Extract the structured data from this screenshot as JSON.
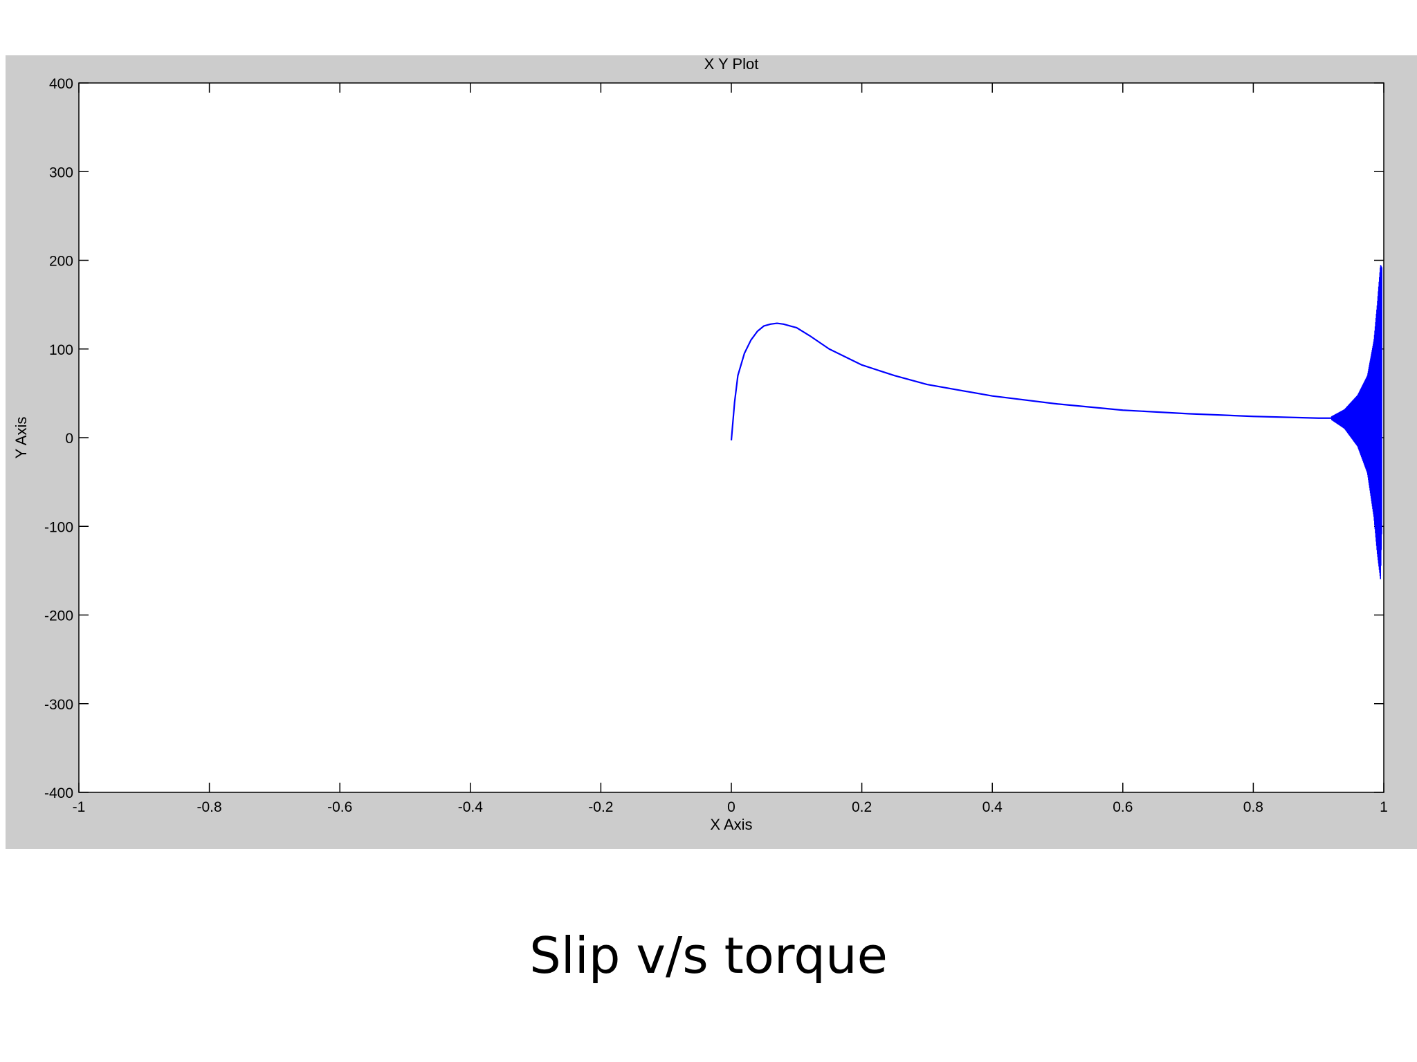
{
  "slide": {
    "caption": "Slip v/s torque"
  },
  "colors": {
    "figure_background": "#cccccc",
    "axes_background": "#ffffff",
    "series_line": "#0000ff",
    "axis_color": "#000000"
  },
  "chart_data": {
    "type": "line",
    "title": "X Y Plot",
    "xlabel": "X Axis",
    "ylabel": "Y Axis",
    "xlim": [
      -1,
      1
    ],
    "ylim": [
      -400,
      400
    ],
    "xticks": [
      -1,
      -0.8,
      -0.6,
      -0.4,
      -0.2,
      0,
      0.2,
      0.4,
      0.6,
      0.8,
      1
    ],
    "yticks": [
      -400,
      -300,
      -200,
      -100,
      0,
      100,
      200,
      300,
      400
    ],
    "xtick_labels": [
      "-1",
      "-0.8",
      "-0.6",
      "-0.4",
      "-0.2",
      "0",
      "0.2",
      "0.4",
      "0.6",
      "0.8",
      "1"
    ],
    "ytick_labels": [
      "-400",
      "-300",
      "-200",
      "-100",
      "0",
      "100",
      "200",
      "300",
      "400"
    ],
    "grid": false,
    "series": [
      {
        "x": [
          0,
          0.005,
          0.01,
          0.02,
          0.03,
          0.04,
          0.05,
          0.06,
          0.07,
          0.08,
          0.1,
          0.12,
          0.15,
          0.2,
          0.25,
          0.3,
          0.4,
          0.5,
          0.6,
          0.7,
          0.8,
          0.85,
          0.9,
          0.92
        ],
        "y": [
          -3,
          40,
          70,
          95,
          110,
          120,
          126,
          128,
          129,
          128,
          124,
          115,
          100,
          82,
          70,
          60,
          47,
          38,
          31,
          27,
          24,
          23,
          22,
          22
        ]
      }
    ],
    "oscillation_region": {
      "x_range": [
        0.92,
        0.997
      ],
      "upper_envelope": [
        [
          0.92,
          24
        ],
        [
          0.94,
          32
        ],
        [
          0.96,
          48
        ],
        [
          0.975,
          70
        ],
        [
          0.985,
          110
        ],
        [
          0.99,
          150
        ],
        [
          0.995,
          195
        ],
        [
          0.997,
          192
        ]
      ],
      "lower_envelope": [
        [
          0.92,
          20
        ],
        [
          0.94,
          10
        ],
        [
          0.96,
          -10
        ],
        [
          0.975,
          -40
        ],
        [
          0.985,
          -90
        ],
        [
          0.99,
          -130
        ],
        [
          0.995,
          -160
        ],
        [
          0.997,
          -100
        ]
      ]
    }
  }
}
